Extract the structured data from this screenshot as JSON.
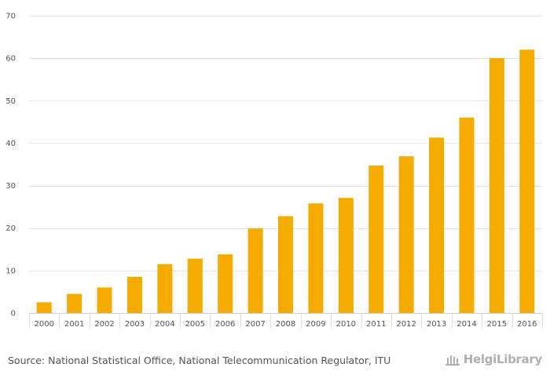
{
  "chart_data": {
    "type": "bar",
    "categories": [
      "2000",
      "2001",
      "2002",
      "2003",
      "2004",
      "2005",
      "2006",
      "2007",
      "2008",
      "2009",
      "2010",
      "2011",
      "2012",
      "2013",
      "2014",
      "2015",
      "2016"
    ],
    "values": [
      2.5,
      4.5,
      6.0,
      8.5,
      11.5,
      12.8,
      13.8,
      19.9,
      22.8,
      25.8,
      27.1,
      34.7,
      36.9,
      41.3,
      46.0,
      60.0,
      62.0
    ],
    "title": "",
    "xlabel": "",
    "ylabel": "",
    "ylim": [
      0,
      70
    ],
    "yticks": [
      0,
      10,
      20,
      30,
      40,
      50,
      60,
      70
    ],
    "grid": true,
    "bar_color": "#f5ab00",
    "grid_color": "#e6e6e6"
  },
  "footer": {
    "source_text": "Source: National Statistical Office, National Telecommunication Regulator, ITU",
    "logo_text": "HelgiLibrary"
  }
}
